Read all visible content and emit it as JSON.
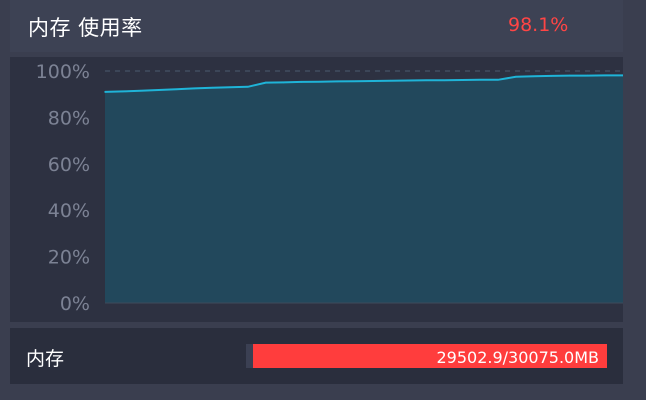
{
  "header": {
    "title": "内存 使用率",
    "value": "98.1%"
  },
  "memory": {
    "label": "内存",
    "usage_text": "29502.9/30075.0MB",
    "used_fraction": 0.981
  },
  "colors": {
    "accent_red": "#ff4545",
    "line": "#1fb4d8",
    "area": "#22485c",
    "grid": "#4a5a6e"
  },
  "chart_data": {
    "type": "area",
    "title": "",
    "xlabel": "",
    "ylabel": "",
    "ylim": [
      0,
      100
    ],
    "grid": true,
    "yticks": [
      "0%",
      "20%",
      "40%",
      "60%",
      "80%",
      "100%"
    ],
    "series": [
      {
        "values": [
          91.0,
          91.2,
          91.5,
          91.8,
          92.1,
          92.5,
          92.8,
          93.0,
          93.2,
          95.0,
          95.1,
          95.3,
          95.4,
          95.5,
          95.6,
          95.7,
          95.8,
          95.9,
          96.0,
          96.0,
          96.1,
          96.2,
          96.2,
          97.5,
          97.7,
          97.9,
          98.0,
          98.0,
          98.1,
          98.1
        ]
      }
    ]
  }
}
